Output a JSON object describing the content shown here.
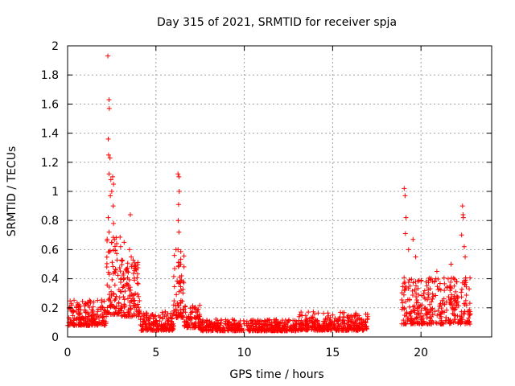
{
  "chart_data": {
    "type": "scatter",
    "title": "Day 315 of 2021, SRMTID for receiver spja",
    "xlabel": "GPS time / hours",
    "ylabel": "SRMTID / TECUs",
    "xlim": [
      0,
      24
    ],
    "ylim": [
      0,
      2
    ],
    "xticks": [
      0,
      5,
      10,
      15,
      20
    ],
    "xtick_labels": [
      "0",
      "5",
      "10",
      "15",
      "20"
    ],
    "yticks": [
      0,
      0.2,
      0.4,
      0.6,
      0.8,
      1,
      1.2,
      1.4,
      1.6,
      1.8,
      2
    ],
    "ytick_labels": [
      "0",
      "0.2",
      "0.4",
      "0.6",
      "0.8",
      "1",
      "1.2",
      "1.4",
      "1.6",
      "1.8",
      "2"
    ],
    "grid": true,
    "marker": "+",
    "color": "#ff0000",
    "series": [
      {
        "name": "SRMTID",
        "segments": [
          {
            "t0": 0.0,
            "t1": 2.2,
            "base": 0.14,
            "spread": 0.11,
            "density": 90
          },
          {
            "t0": 2.2,
            "t1": 3.0,
            "base": 0.35,
            "spread": 0.35,
            "density": 110
          },
          {
            "t0": 3.0,
            "t1": 4.1,
            "base": 0.28,
            "spread": 0.25,
            "density": 110
          },
          {
            "t0": 4.1,
            "t1": 6.0,
            "base": 0.09,
            "spread": 0.08,
            "density": 90
          },
          {
            "t0": 6.0,
            "t1": 6.6,
            "base": 0.3,
            "spread": 0.3,
            "density": 110
          },
          {
            "t0": 6.6,
            "t1": 7.5,
            "base": 0.12,
            "spread": 0.1,
            "density": 90
          },
          {
            "t0": 7.5,
            "t1": 13.0,
            "base": 0.07,
            "spread": 0.05,
            "density": 80
          },
          {
            "t0": 13.0,
            "t1": 17.0,
            "base": 0.09,
            "spread": 0.08,
            "density": 85
          },
          {
            "t0": 18.9,
            "t1": 22.8,
            "base": 0.2,
            "spread": 0.2,
            "density": 90
          }
        ],
        "peaks": [
          [
            2.28,
            1.93
          ],
          [
            2.35,
            1.63
          ],
          [
            2.36,
            1.57
          ],
          [
            2.3,
            1.36
          ],
          [
            2.32,
            1.25
          ],
          [
            2.4,
            1.23
          ],
          [
            2.35,
            1.12
          ],
          [
            2.45,
            1.08
          ],
          [
            2.55,
            1.1
          ],
          [
            2.6,
            1.05
          ],
          [
            2.5,
            1.0
          ],
          [
            2.42,
            0.97
          ],
          [
            2.58,
            0.9
          ],
          [
            2.3,
            0.82
          ],
          [
            2.6,
            0.78
          ],
          [
            2.35,
            0.72
          ],
          [
            2.5,
            0.65
          ],
          [
            3.55,
            0.84
          ],
          [
            3.5,
            0.6
          ],
          [
            3.6,
            0.55
          ],
          [
            3.2,
            0.65
          ],
          [
            3.0,
            0.62
          ],
          [
            6.25,
            1.12
          ],
          [
            6.3,
            1.1
          ],
          [
            6.32,
            1.0
          ],
          [
            6.28,
            0.91
          ],
          [
            6.26,
            0.8
          ],
          [
            6.3,
            0.72
          ],
          [
            6.25,
            0.6
          ],
          [
            6.4,
            0.5
          ],
          [
            6.45,
            0.42
          ],
          [
            19.05,
            1.02
          ],
          [
            19.1,
            0.97
          ],
          [
            19.15,
            0.82
          ],
          [
            19.12,
            0.71
          ],
          [
            19.3,
            0.6
          ],
          [
            19.55,
            0.67
          ],
          [
            19.7,
            0.55
          ],
          [
            22.35,
            0.9
          ],
          [
            22.38,
            0.84
          ],
          [
            22.4,
            0.82
          ],
          [
            22.3,
            0.7
          ],
          [
            22.45,
            0.62
          ],
          [
            22.5,
            0.55
          ],
          [
            21.7,
            0.5
          ],
          [
            20.9,
            0.45
          ]
        ]
      }
    ]
  }
}
